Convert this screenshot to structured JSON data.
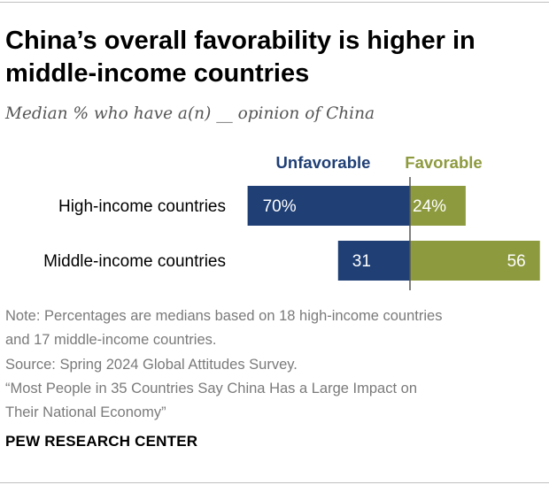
{
  "title_lines": [
    "China’s overall favorability is higher in",
    "middle-income countries"
  ],
  "subtitle": "Median % who have a(n) __ opinion of China",
  "colors": {
    "unfavorable": "#1f3f75",
    "favorable": "#8e9a3e",
    "axis": "#555555",
    "text": "#000000",
    "note": "#7a7a7a"
  },
  "chart_data": {
    "type": "bar",
    "orientation": "horizontal-diverging",
    "categories": [
      "High-income countries",
      "Middle-income countries"
    ],
    "series": [
      {
        "name": "Unfavorable",
        "values": [
          70,
          31
        ],
        "labels": [
          "70%",
          "31"
        ]
      },
      {
        "name": "Favorable",
        "values": [
          24,
          56
        ],
        "labels": [
          "24%",
          "56"
        ]
      }
    ],
    "unit": "%",
    "legend_placement": "top",
    "grid": false
  },
  "note_lines": [
    "Note: Percentages are medians based on 18 high-income countries",
    "and 17 middle-income countries."
  ],
  "source_lines": [
    "Source: Spring 2024 Global Attitudes Survey.",
    "“Most People in 35 Countries Say China Has a Large Impact on",
    "Their National Economy”"
  ],
  "footer": "PEW RESEARCH CENTER"
}
